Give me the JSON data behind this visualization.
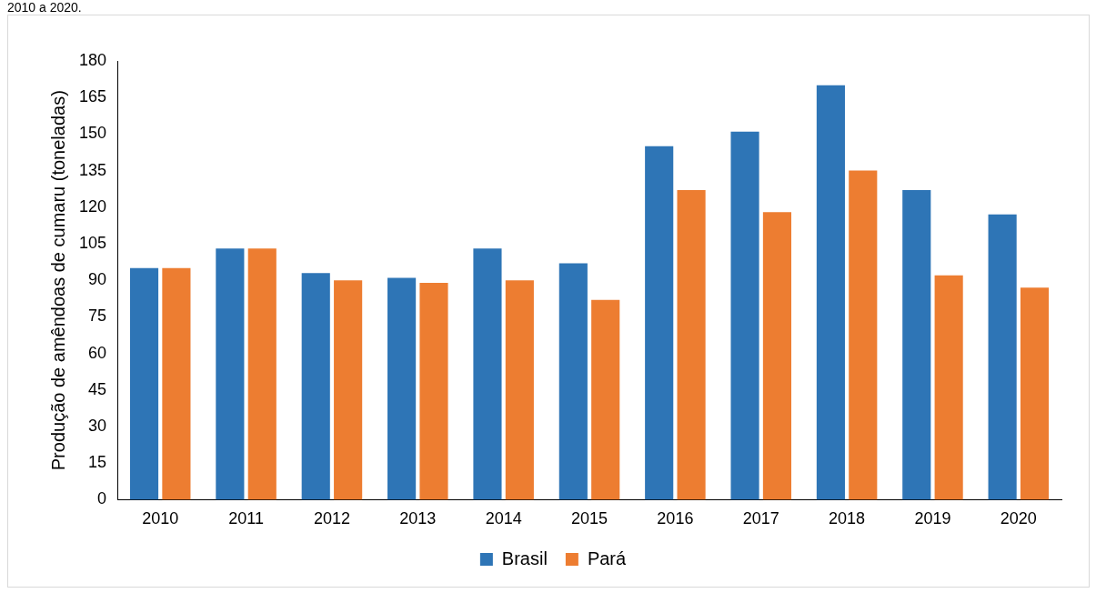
{
  "chart_data": {
    "type": "bar",
    "ylabel": "Produção de amêndoas de cumaru (toneladas)",
    "annotations": [
      "2010 a 2020."
    ],
    "categories": [
      "2010",
      "2011",
      "2012",
      "2013",
      "2014",
      "2015",
      "2016",
      "2017",
      "2018",
      "2019",
      "2020"
    ],
    "series": [
      {
        "name": "Brasil",
        "color": "#2e75b6",
        "values": [
          95,
          103,
          93,
          91,
          103,
          97,
          145,
          151,
          170,
          127,
          117
        ]
      },
      {
        "name": "Pará",
        "color": "#ed7d31",
        "values": [
          95,
          103,
          90,
          89,
          90,
          82,
          127,
          118,
          135,
          92,
          87
        ]
      }
    ],
    "ylim": [
      0,
      180
    ],
    "yticks": [
      0,
      15,
      30,
      45,
      60,
      75,
      90,
      105,
      120,
      135,
      150,
      165,
      180
    ],
    "grid": false,
    "legend": "bottom"
  }
}
